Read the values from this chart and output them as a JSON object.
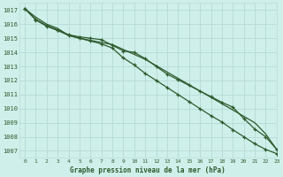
{
  "background_color": "#cff0ea",
  "grid_color": "#b8ddd8",
  "line_color": "#2d5a2d",
  "title": "Graphe pression niveau de la mer (hPa)",
  "xlim": [
    -0.5,
    23
  ],
  "ylim": [
    1006.5,
    1017.5
  ],
  "yticks": [
    1007,
    1008,
    1009,
    1010,
    1011,
    1012,
    1013,
    1014,
    1015,
    1016,
    1017
  ],
  "xticks": [
    0,
    1,
    2,
    3,
    4,
    5,
    6,
    7,
    8,
    9,
    10,
    11,
    12,
    13,
    14,
    15,
    16,
    17,
    18,
    19,
    20,
    21,
    22,
    23
  ],
  "series1_x": [
    0,
    1,
    2,
    3,
    4,
    5,
    6,
    7,
    8,
    9,
    10,
    11,
    12,
    13,
    14,
    15,
    16,
    17,
    18,
    19,
    20,
    21,
    22,
    23
  ],
  "series1_y": [
    1017.1,
    1016.5,
    1016.0,
    1015.7,
    1015.2,
    1015.0,
    1014.85,
    1014.7,
    1014.55,
    1014.2,
    1013.85,
    1013.5,
    1013.05,
    1012.6,
    1012.15,
    1011.7,
    1011.25,
    1010.8,
    1010.35,
    1009.9,
    1009.45,
    1009.0,
    1008.2,
    1007.1
  ],
  "series2_x": [
    0,
    1,
    2,
    3,
    4,
    5,
    6,
    7,
    8,
    9,
    10,
    11,
    12,
    13,
    14,
    15,
    16,
    17,
    18,
    19,
    20,
    21,
    22,
    23
  ],
  "series2_y": [
    1017.1,
    1016.35,
    1015.9,
    1015.6,
    1015.25,
    1015.1,
    1015.0,
    1014.9,
    1014.5,
    1014.1,
    1014.0,
    1013.55,
    1013.0,
    1012.45,
    1012.05,
    1011.65,
    1011.25,
    1010.85,
    1010.45,
    1010.1,
    1009.3,
    1008.55,
    1008.0,
    1007.1
  ],
  "series3_x": [
    0,
    1,
    2,
    3,
    4,
    5,
    6,
    7,
    8,
    9,
    10,
    11,
    12,
    13,
    14,
    15,
    16,
    17,
    18,
    19,
    20,
    21,
    22,
    23
  ],
  "series3_y": [
    1017.1,
    1016.3,
    1015.85,
    1015.55,
    1015.2,
    1015.0,
    1014.8,
    1014.6,
    1014.3,
    1013.6,
    1013.1,
    1012.5,
    1012.0,
    1011.5,
    1011.0,
    1010.5,
    1010.0,
    1009.5,
    1009.05,
    1008.5,
    1008.0,
    1007.5,
    1007.1,
    1006.8
  ]
}
